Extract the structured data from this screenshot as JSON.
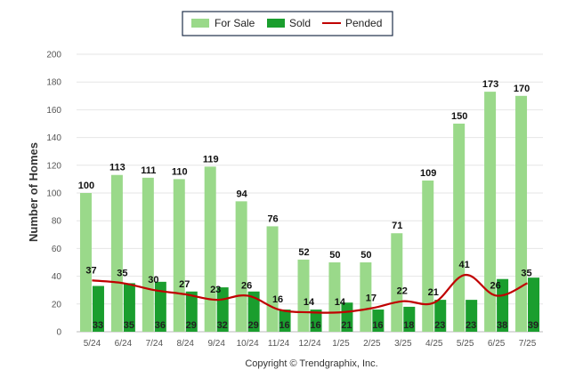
{
  "chart_data": {
    "type": "bar",
    "categories": [
      "5/24",
      "6/24",
      "7/24",
      "8/24",
      "9/24",
      "10/24",
      "11/24",
      "12/24",
      "1/25",
      "2/25",
      "3/25",
      "4/25",
      "5/25",
      "6/25",
      "7/25"
    ],
    "series": [
      {
        "name": "For Sale",
        "type": "bar",
        "color": "#9ad98a",
        "values": [
          100,
          113,
          111,
          110,
          119,
          94,
          76,
          52,
          50,
          50,
          71,
          109,
          150,
          173,
          170
        ]
      },
      {
        "name": "Sold",
        "type": "bar",
        "color": "#1a9e2e",
        "values": [
          33,
          35,
          36,
          29,
          32,
          29,
          16,
          16,
          21,
          16,
          18,
          23,
          23,
          38,
          39
        ]
      },
      {
        "name": "Pended",
        "type": "line",
        "color": "#c00000",
        "values": [
          37,
          35,
          30,
          27,
          23,
          26,
          16,
          14,
          14,
          17,
          22,
          21,
          41,
          26,
          35
        ]
      }
    ],
    "ylabel": "Number of Homes",
    "xlabel": "",
    "ylim": [
      0,
      200
    ],
    "yticks": [
      0,
      20,
      40,
      60,
      80,
      100,
      120,
      140,
      160,
      180,
      200
    ],
    "grid": true,
    "legend_position": "top-center"
  },
  "footer": {
    "copyright": "Copyright © Trendgraphix, Inc."
  }
}
